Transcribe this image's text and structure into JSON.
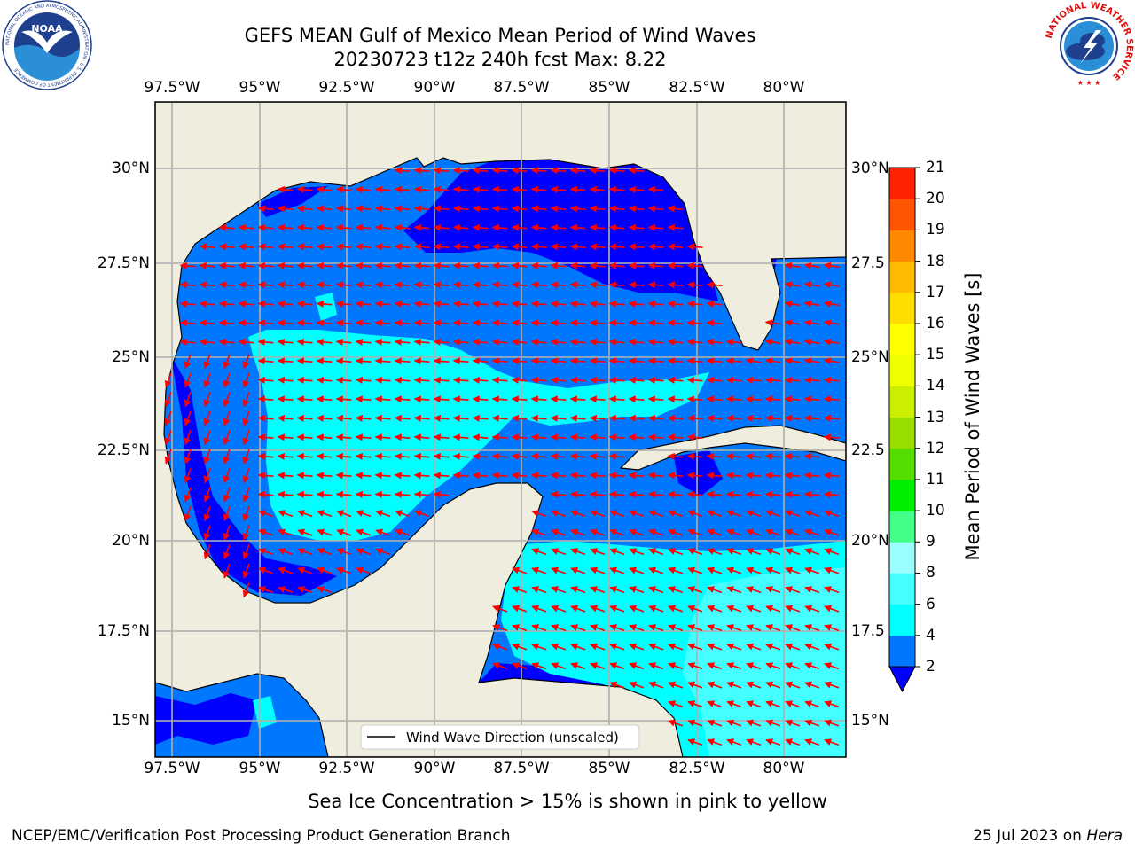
{
  "title_line1": "GEFS MEAN Gulf of Mexico Mean Period of Wind Waves",
  "title_line2": "20230723 t12z 240h fcst   Max: 8.22",
  "logos": {
    "noaa_text": "NOAA",
    "noaa_ring": "NATIONAL OCEANIC AND ATMOSPHERIC ADMINISTRATION · U.S. DEPARTMENT OF COMMERCE",
    "nws_ring": "NATIONAL WEATHER SERVICE"
  },
  "lon_labels": [
    "97.5°W",
    "95°W",
    "92.5°W",
    "90°W",
    "87.5°W",
    "85°W",
    "82.5°W",
    "80°W"
  ],
  "lat_labels_left": [
    "30°N",
    "27.5°N",
    "25°N",
    "22.5°N",
    "20°N",
    "17.5°N",
    "15°N"
  ],
  "lat_labels_right": [
    "30°N",
    "27.5",
    "25°N",
    "22.5",
    "20°N",
    "17.5",
    "15°N"
  ],
  "legend_label": "Wind Wave Direction (unscaled)",
  "colorbar": {
    "title": "Mean Period of Wind Waves [s]",
    "ticks": [
      "2",
      "4",
      "6",
      "8",
      "9",
      "10",
      "11",
      "12",
      "13",
      "14",
      "15",
      "16",
      "17",
      "18",
      "19",
      "20",
      "21"
    ],
    "colors": [
      "#0077ff",
      "#00ffff",
      "#44ffff",
      "#99ffff",
      "#44ff88",
      "#00ee00",
      "#55dd00",
      "#99dd00",
      "#ccee00",
      "#eeff00",
      "#ffff00",
      "#ffdd00",
      "#ffbb00",
      "#ff8800",
      "#ff5500",
      "#ff2200"
    ],
    "under_color": "#0000ff",
    "top_color": "#ff0000"
  },
  "field_colors": {
    "land": "#efedde",
    "lt2": "#0000ff",
    "c2_4": "#0077ff",
    "c4_6": "#00ffff",
    "c6_8": "#44ffff",
    "arrow": "#ff0000"
  },
  "footer_note": "Sea Ice Concentration > 15% is shown in pink to yellow",
  "footer_left": "NCEP/EMC/Verification Post Processing Product Generation Branch",
  "footer_right_date": "25 Jul 2023 on",
  "footer_right_machine": "Hera"
}
